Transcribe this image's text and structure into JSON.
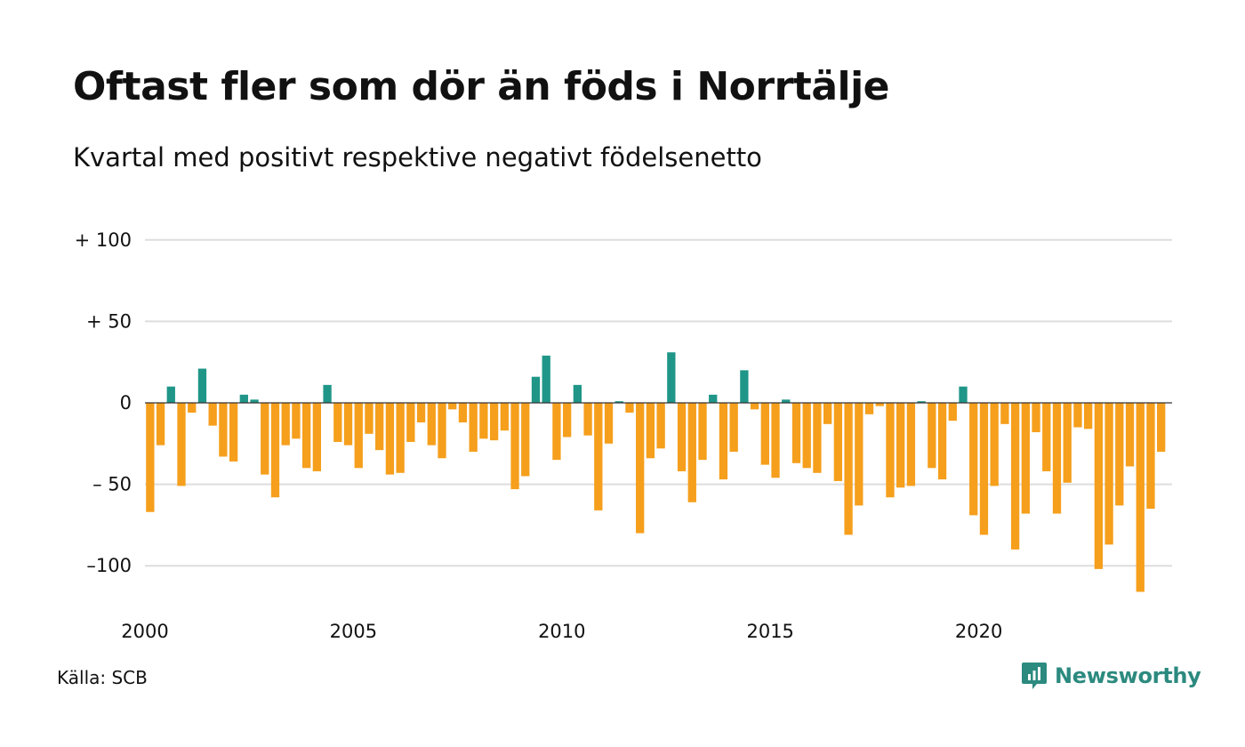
{
  "title": "Oftast fler som dör än föds i Norrtälje",
  "subtitle": "Kvartal med positivt respektive negativt födelsenetto",
  "source": "Källa: SCB",
  "brand": {
    "name": "Newsworthy",
    "icon": "newsworthy-logo-icon"
  },
  "colors": {
    "positive": "#1f9688",
    "negative": "#f59f1c",
    "grid": "#dddddd",
    "zero": "#333333"
  },
  "chart_data": {
    "type": "bar",
    "title": "Oftast fler som dör än föds i Norrtälje",
    "subtitle": "Kvartal med positivt respektive negativt födelsenetto",
    "ylim": [
      -120,
      100
    ],
    "y_ticks": [
      {
        "value": 100,
        "label": "+ 100"
      },
      {
        "value": 50,
        "label": "+  50"
      },
      {
        "value": 0,
        "label": "0"
      },
      {
        "value": -50,
        "label": "– 50"
      },
      {
        "value": -100,
        "label": "–100"
      }
    ],
    "x_ticks": [
      {
        "value": 2000,
        "label": "2000"
      },
      {
        "value": 2005,
        "label": "2005"
      },
      {
        "value": 2010,
        "label": "2010"
      },
      {
        "value": 2015,
        "label": "2015"
      },
      {
        "value": 2020,
        "label": "2020"
      }
    ],
    "x_start": 2000,
    "periods_per_year": 4,
    "grid": true,
    "values": [
      -67,
      -26,
      10,
      -51,
      -6,
      21,
      -14,
      -33,
      -36,
      5,
      2,
      -44,
      -58,
      -26,
      -22,
      -40,
      -42,
      11,
      -24,
      -26,
      -40,
      -19,
      -29,
      -44,
      -43,
      -24,
      -12,
      -26,
      -34,
      -4,
      -12,
      -30,
      -22,
      -23,
      -17,
      -53,
      -45,
      16,
      29,
      -35,
      -21,
      11,
      -20,
      -66,
      -25,
      1,
      -6,
      -80,
      -34,
      -28,
      31,
      -42,
      -61,
      -35,
      5,
      -47,
      -30,
      20,
      -4,
      -38,
      -46,
      2,
      -37,
      -40,
      -43,
      -13,
      -48,
      -81,
      -63,
      -7,
      -2,
      -58,
      -52,
      -51,
      1,
      -40,
      -47,
      -11,
      10,
      -69,
      -81,
      -51,
      -13,
      -90,
      -68,
      -18,
      -42,
      -68,
      -49,
      -15,
      -16,
      -102,
      -87,
      -63,
      -39,
      -116,
      -65,
      -30
    ]
  }
}
